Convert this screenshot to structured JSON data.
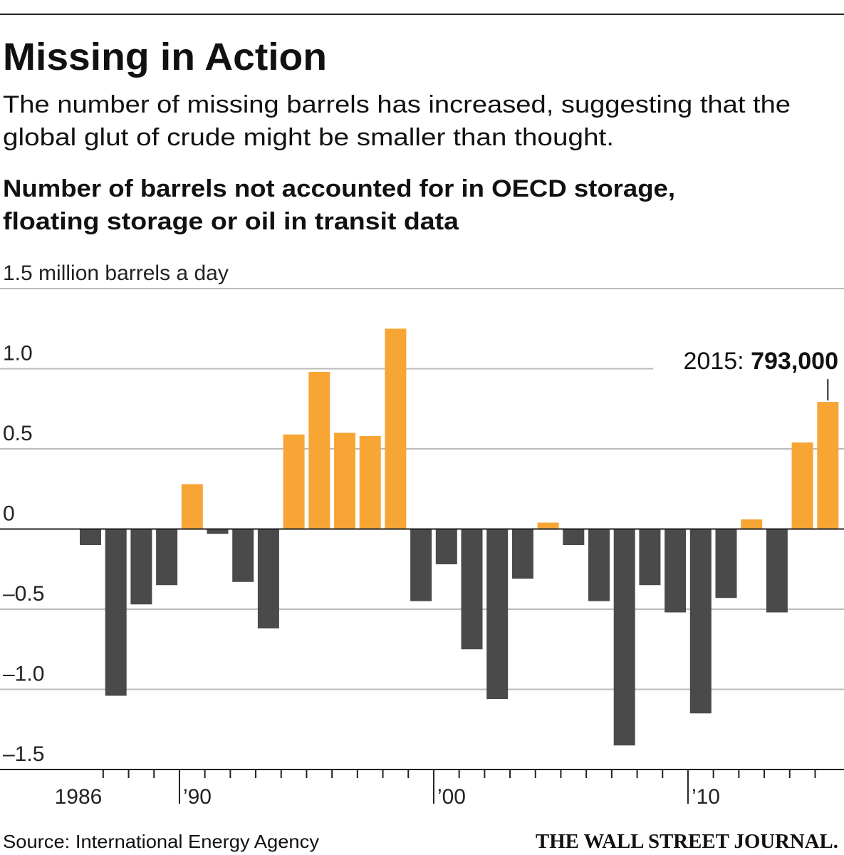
{
  "chart_data": {
    "type": "bar",
    "title": "Missing in Action",
    "subtitle": [
      "The number of missing barrels has increased, suggesting that the",
      "global glut of crude might be smaller than thought."
    ],
    "chart_label": [
      "Number of barrels not accounted for in OECD storage,",
      "floating storage or oil in transit data"
    ],
    "categories": [
      "1986",
      null,
      null,
      null,
      "’90",
      null,
      null,
      null,
      null,
      null,
      null,
      null,
      null,
      null,
      "’00",
      null,
      null,
      null,
      null,
      null,
      null,
      null,
      null,
      null,
      "’10",
      null,
      null,
      null,
      null,
      null
    ],
    "values": [
      -0.1,
      -1.04,
      -0.47,
      -0.35,
      0.28,
      -0.03,
      -0.33,
      -0.62,
      0.59,
      0.98,
      0.6,
      0.58,
      1.25,
      -0.45,
      -0.22,
      -0.75,
      -1.06,
      -0.31,
      0.04,
      -0.1,
      -0.45,
      -1.35,
      -0.35,
      -0.52,
      -1.15,
      -0.43,
      0.06,
      -0.52,
      0.54,
      0.793
    ],
    "value_labels": [
      null,
      null,
      null,
      null,
      null,
      null,
      null,
      null,
      null,
      null,
      null,
      null,
      null,
      null,
      null,
      null,
      null,
      null,
      null,
      null,
      null,
      null,
      null,
      null,
      null,
      null,
      null,
      null,
      null,
      "793,000"
    ],
    "annotation": "2015:",
    "positive_color": "#f7a535",
    "negative_color": "#4a4a4a",
    "ylim": [
      -1.5,
      1.5
    ],
    "yticks": [
      {
        "value": -1.5,
        "label": "–1.5"
      },
      {
        "value": -1,
        "label": "–1.0"
      },
      {
        "value": -0.5,
        "label": "–0.5"
      },
      0,
      0.5,
      {
        "value": 1,
        "label": "1.0"
      },
      {
        "value": 1.5,
        "label": "1.5 million barrels a day"
      }
    ],
    "grid": true,
    "source": "Source: International Energy Agency",
    "brand": "THE WALL STREET JOURNAL."
  }
}
